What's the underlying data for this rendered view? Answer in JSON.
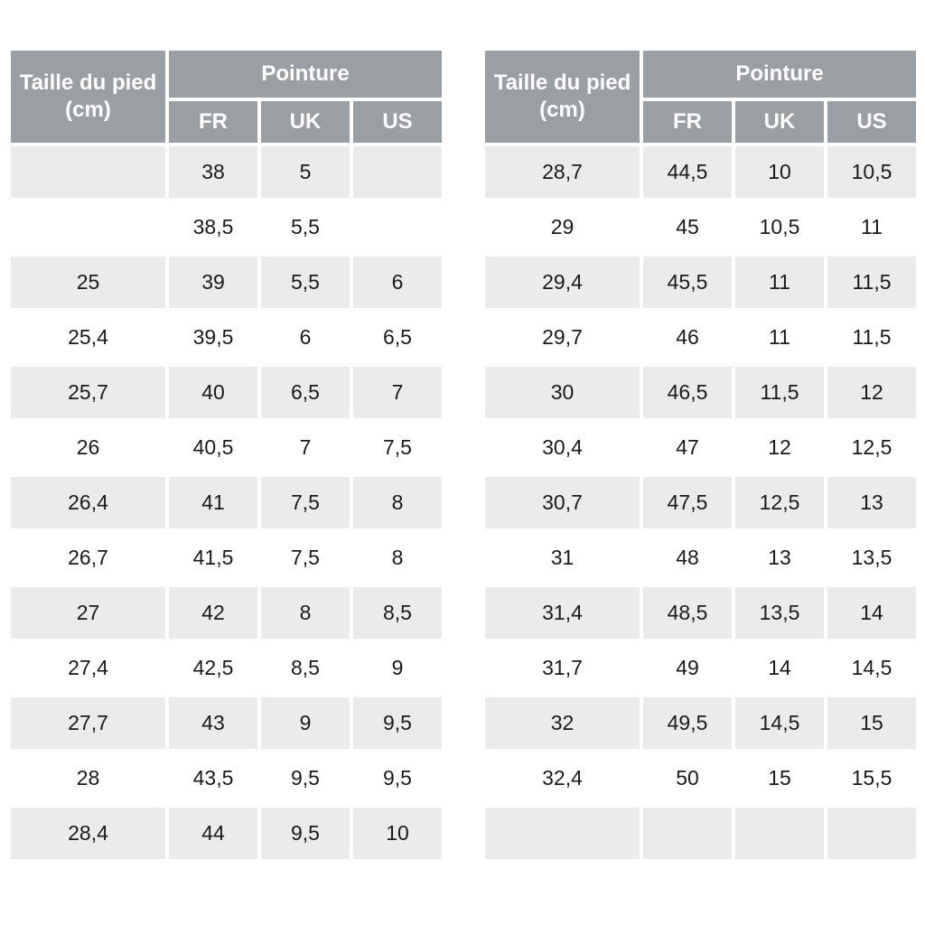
{
  "colors": {
    "header_bg": "#9a9fa4",
    "header_text": "#ffffff",
    "row_alt_bg": "#ebebeb",
    "row_bg": "#ffffff",
    "cell_text": "#1a1a1a",
    "page_bg": "#ffffff"
  },
  "tables": [
    {
      "header": {
        "foot_size_line1": "Taille du pied",
        "foot_size_line2": "(cm)",
        "group": "Pointure",
        "cols": [
          "FR",
          "UK",
          "US"
        ]
      },
      "rows": [
        [
          "",
          "38",
          "5",
          ""
        ],
        [
          "",
          "38,5",
          "5,5",
          ""
        ],
        [
          "25",
          "39",
          "5,5",
          "6"
        ],
        [
          "25,4",
          "39,5",
          "6",
          "6,5"
        ],
        [
          "25,7",
          "40",
          "6,5",
          "7"
        ],
        [
          "26",
          "40,5",
          "7",
          "7,5"
        ],
        [
          "26,4",
          "41",
          "7,5",
          "8"
        ],
        [
          "26,7",
          "41,5",
          "7,5",
          "8"
        ],
        [
          "27",
          "42",
          "8",
          "8,5"
        ],
        [
          "27,4",
          "42,5",
          "8,5",
          "9"
        ],
        [
          "27,7",
          "43",
          "9",
          "9,5"
        ],
        [
          "28",
          "43,5",
          "9,5",
          "9,5"
        ],
        [
          "28,4",
          "44",
          "9,5",
          "10"
        ]
      ]
    },
    {
      "header": {
        "foot_size_line1": "Taille du pied",
        "foot_size_line2": "(cm)",
        "group": "Pointure",
        "cols": [
          "FR",
          "UK",
          "US"
        ]
      },
      "rows": [
        [
          "28,7",
          "44,5",
          "10",
          "10,5"
        ],
        [
          "29",
          "45",
          "10,5",
          "11"
        ],
        [
          "29,4",
          "45,5",
          "11",
          "11,5"
        ],
        [
          "29,7",
          "46",
          "11",
          "11,5"
        ],
        [
          "30",
          "46,5",
          "11,5",
          "12"
        ],
        [
          "30,4",
          "47",
          "12",
          "12,5"
        ],
        [
          "30,7",
          "47,5",
          "12,5",
          "13"
        ],
        [
          "31",
          "48",
          "13",
          "13,5"
        ],
        [
          "31,4",
          "48,5",
          "13,5",
          "14"
        ],
        [
          "31,7",
          "49",
          "14",
          "14,5"
        ],
        [
          "32",
          "49,5",
          "14,5",
          "15"
        ],
        [
          "32,4",
          "50",
          "15",
          "15,5"
        ],
        [
          "",
          "",
          "",
          ""
        ]
      ]
    }
  ]
}
